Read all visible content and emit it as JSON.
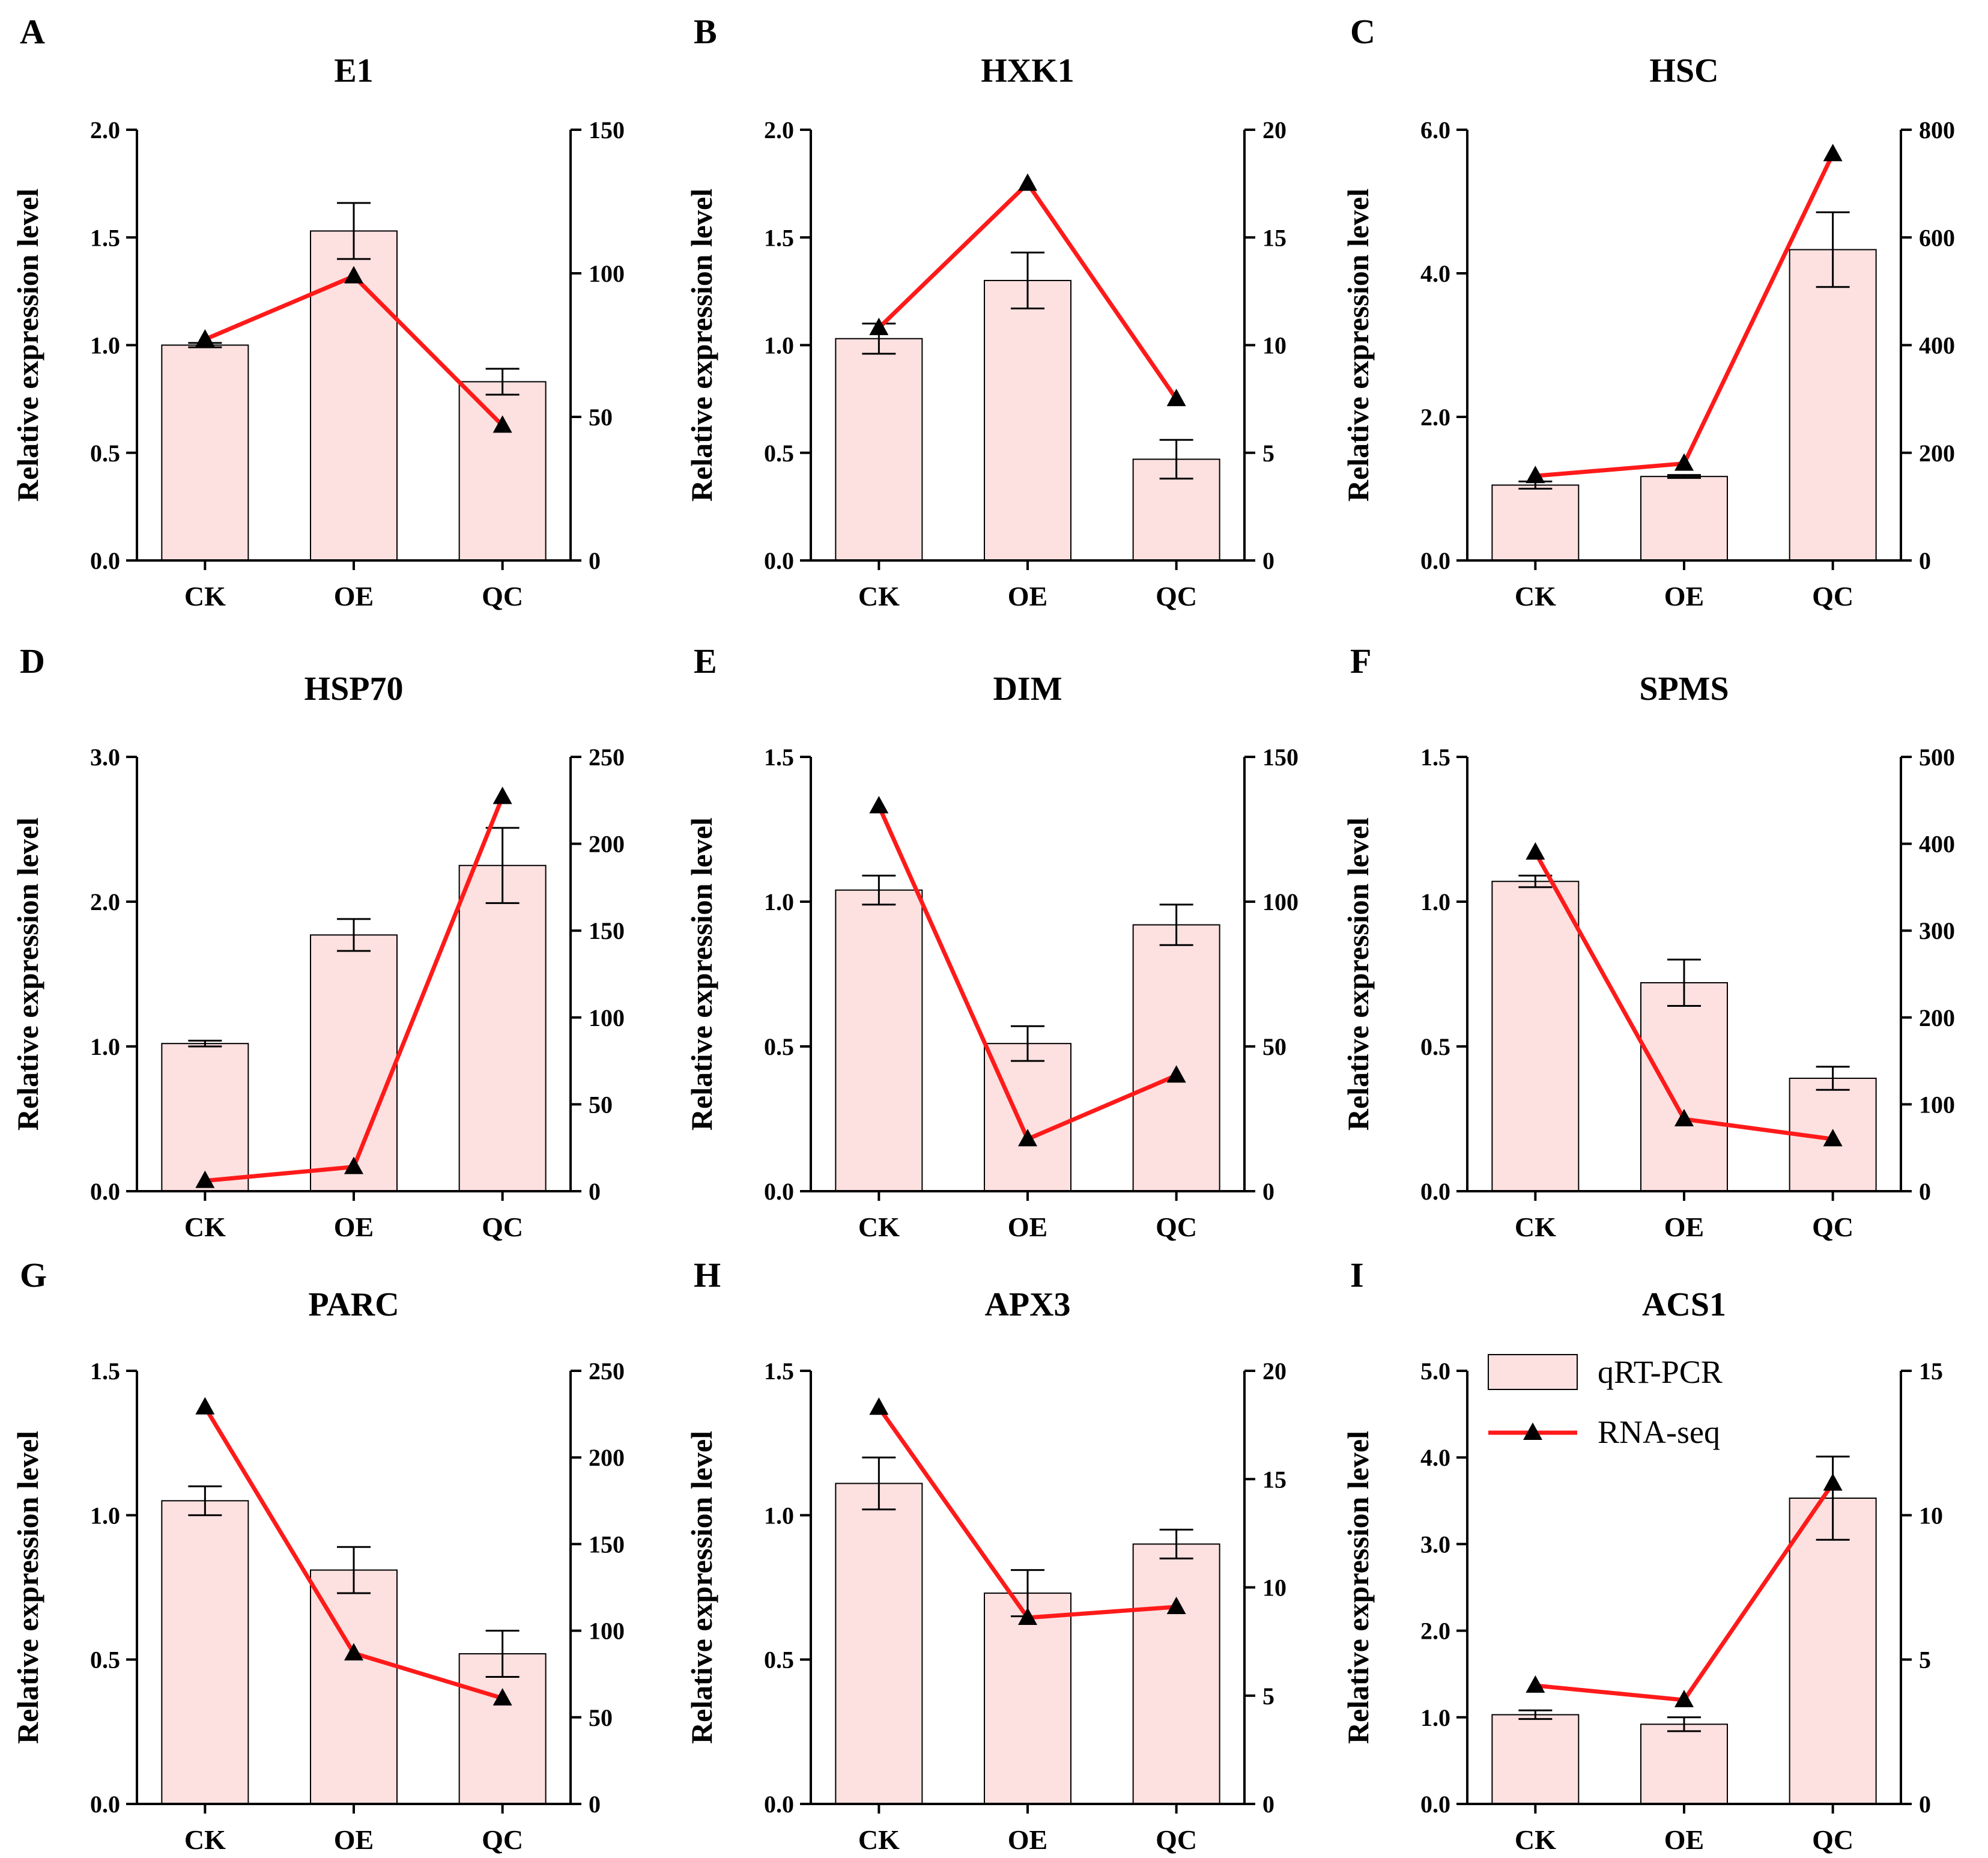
{
  "style": {
    "bar_fill": "#fde0e0",
    "bar_stroke": "#000000",
    "line_color": "#ff1a1a",
    "marker_color": "#000000"
  },
  "legend": {
    "bar_label": "qRT-PCR",
    "line_label": "RNA-seq"
  },
  "chart_data": [
    {
      "panel": "A",
      "title": "E1",
      "type": "bar+line",
      "ylabel": "Relative expression level",
      "categories": [
        "CK",
        "OE",
        "QC"
      ],
      "left_axis": {
        "ylim": [
          0,
          2.0
        ],
        "ticks": [
          0,
          0.5,
          1.0,
          1.5,
          2.0
        ],
        "tick_labels": [
          "0.0",
          "0.5",
          "1.0",
          "1.5",
          "2.0"
        ]
      },
      "right_axis": {
        "ylim": [
          0,
          150
        ],
        "ticks": [
          0,
          50,
          100,
          150
        ],
        "tick_labels": [
          "0",
          "50",
          "100",
          "150"
        ]
      },
      "series": [
        {
          "name": "qRT-PCR",
          "kind": "bar",
          "axis": "left",
          "values": [
            1.0,
            1.53,
            0.83
          ],
          "errors": [
            0.01,
            0.13,
            0.06
          ]
        },
        {
          "name": "RNA-seq",
          "kind": "line",
          "axis": "right",
          "values": [
            77,
            99,
            47
          ]
        }
      ]
    },
    {
      "panel": "B",
      "title": "HXK1",
      "type": "bar+line",
      "ylabel": "Relative expression level",
      "categories": [
        "CK",
        "OE",
        "QC"
      ],
      "left_axis": {
        "ylim": [
          0,
          2.0
        ],
        "ticks": [
          0,
          0.5,
          1.0,
          1.5,
          2.0
        ],
        "tick_labels": [
          "0.0",
          "0.5",
          "1.0",
          "1.5",
          "2.0"
        ]
      },
      "right_axis": {
        "ylim": [
          0,
          20
        ],
        "ticks": [
          0,
          5,
          10,
          15,
          20
        ],
        "tick_labels": [
          "0",
          "5",
          "10",
          "15",
          "20"
        ]
      },
      "series": [
        {
          "name": "qRT-PCR",
          "kind": "bar",
          "axis": "left",
          "values": [
            1.03,
            1.3,
            0.47
          ],
          "errors": [
            0.07,
            0.13,
            0.09
          ]
        },
        {
          "name": "RNA-seq",
          "kind": "line",
          "axis": "right",
          "values": [
            10.8,
            17.5,
            7.5
          ]
        }
      ]
    },
    {
      "panel": "C",
      "title": "HSC",
      "type": "bar+line",
      "ylabel": "Relative expression level",
      "categories": [
        "CK",
        "OE",
        "QC"
      ],
      "left_axis": {
        "ylim": [
          0,
          6.0
        ],
        "ticks": [
          0,
          2.0,
          4.0,
          6.0
        ],
        "tick_labels": [
          "0.0",
          "2.0",
          "4.0",
          "6.0"
        ]
      },
      "right_axis": {
        "ylim": [
          0,
          800
        ],
        "ticks": [
          0,
          200,
          400,
          600,
          800
        ],
        "tick_labels": [
          "0",
          "200",
          "400",
          "600",
          "800"
        ]
      },
      "series": [
        {
          "name": "qRT-PCR",
          "kind": "bar",
          "axis": "left",
          "values": [
            1.05,
            1.17,
            4.33
          ],
          "errors": [
            0.05,
            0.02,
            0.52
          ]
        },
        {
          "name": "RNA-seq",
          "kind": "line",
          "axis": "right",
          "values": [
            157,
            180,
            755
          ]
        }
      ]
    },
    {
      "panel": "D",
      "title": "HSP70",
      "type": "bar+line",
      "ylabel": "Relative expression level",
      "categories": [
        "CK",
        "OE",
        "QC"
      ],
      "left_axis": {
        "ylim": [
          0,
          3.0
        ],
        "ticks": [
          0,
          1.0,
          2.0,
          3.0
        ],
        "tick_labels": [
          "0.0",
          "1.0",
          "2.0",
          "3.0"
        ]
      },
      "right_axis": {
        "ylim": [
          0,
          250
        ],
        "ticks": [
          0,
          50,
          100,
          150,
          200,
          250
        ],
        "tick_labels": [
          "0",
          "50",
          "100",
          "150",
          "200",
          "250"
        ]
      },
      "series": [
        {
          "name": "qRT-PCR",
          "kind": "bar",
          "axis": "left",
          "values": [
            1.02,
            1.77,
            2.25
          ],
          "errors": [
            0.02,
            0.11,
            0.26
          ]
        },
        {
          "name": "RNA-seq",
          "kind": "line",
          "axis": "right",
          "values": [
            6,
            14,
            227
          ]
        }
      ]
    },
    {
      "panel": "E",
      "title": "DIM",
      "type": "bar+line",
      "ylabel": "Relative expression level",
      "categories": [
        "CK",
        "OE",
        "QC"
      ],
      "left_axis": {
        "ylim": [
          0,
          1.5
        ],
        "ticks": [
          0,
          0.5,
          1.0,
          1.5
        ],
        "tick_labels": [
          "0.0",
          "0.5",
          "1.0",
          "1.5"
        ]
      },
      "right_axis": {
        "ylim": [
          0,
          150
        ],
        "ticks": [
          0,
          50,
          100,
          150
        ],
        "tick_labels": [
          "0",
          "50",
          "100",
          "150"
        ]
      },
      "series": [
        {
          "name": "qRT-PCR",
          "kind": "bar",
          "axis": "left",
          "values": [
            1.04,
            0.51,
            0.92
          ],
          "errors": [
            0.05,
            0.06,
            0.07
          ]
        },
        {
          "name": "RNA-seq",
          "kind": "line",
          "axis": "right",
          "values": [
            133,
            18,
            40
          ]
        }
      ]
    },
    {
      "panel": "F",
      "title": "SPMS",
      "type": "bar+line",
      "ylabel": "Relative expression level",
      "categories": [
        "CK",
        "OE",
        "QC"
      ],
      "left_axis": {
        "ylim": [
          0,
          1.5
        ],
        "ticks": [
          0,
          0.5,
          1.0,
          1.5
        ],
        "tick_labels": [
          "0.0",
          "0.5",
          "1.0",
          "1.5"
        ]
      },
      "right_axis": {
        "ylim": [
          0,
          500
        ],
        "ticks": [
          0,
          100,
          200,
          300,
          400,
          500
        ],
        "tick_labels": [
          "0",
          "100",
          "200",
          "300",
          "400",
          "500"
        ]
      },
      "series": [
        {
          "name": "qRT-PCR",
          "kind": "bar",
          "axis": "left",
          "values": [
            1.07,
            0.72,
            0.39
          ],
          "errors": [
            0.02,
            0.08,
            0.04
          ]
        },
        {
          "name": "RNA-seq",
          "kind": "line",
          "axis": "right",
          "values": [
            390,
            83,
            60
          ]
        }
      ]
    },
    {
      "panel": "G",
      "title": "PARC",
      "type": "bar+line",
      "ylabel": "Relative expression level",
      "categories": [
        "CK",
        "OE",
        "QC"
      ],
      "left_axis": {
        "ylim": [
          0,
          1.5
        ],
        "ticks": [
          0,
          0.5,
          1.0,
          1.5
        ],
        "tick_labels": [
          "0.0",
          "0.5",
          "1.0",
          "1.5"
        ]
      },
      "right_axis": {
        "ylim": [
          0,
          250
        ],
        "ticks": [
          0,
          50,
          100,
          150,
          200,
          250
        ],
        "tick_labels": [
          "0",
          "50",
          "100",
          "150",
          "200",
          "250"
        ]
      },
      "series": [
        {
          "name": "qRT-PCR",
          "kind": "bar",
          "axis": "left",
          "values": [
            1.05,
            0.81,
            0.52
          ],
          "errors": [
            0.05,
            0.08,
            0.08
          ]
        },
        {
          "name": "RNA-seq",
          "kind": "line",
          "axis": "right",
          "values": [
            229,
            87,
            61
          ]
        }
      ]
    },
    {
      "panel": "H",
      "title": "APX3",
      "type": "bar+line",
      "ylabel": "Relative expression level",
      "categories": [
        "CK",
        "OE",
        "QC"
      ],
      "left_axis": {
        "ylim": [
          0,
          1.5
        ],
        "ticks": [
          0,
          0.5,
          1.0,
          1.5
        ],
        "tick_labels": [
          "0.0",
          "0.5",
          "1.0",
          "1.5"
        ]
      },
      "right_axis": {
        "ylim": [
          0,
          20
        ],
        "ticks": [
          0,
          5,
          10,
          15,
          20
        ],
        "tick_labels": [
          "0",
          "5",
          "10",
          "15",
          "20"
        ]
      },
      "series": [
        {
          "name": "qRT-PCR",
          "kind": "bar",
          "axis": "left",
          "values": [
            1.11,
            0.73,
            0.9
          ],
          "errors": [
            0.09,
            0.08,
            0.05
          ]
        },
        {
          "name": "RNA-seq",
          "kind": "line",
          "axis": "right",
          "values": [
            18.3,
            8.6,
            9.1
          ]
        }
      ]
    },
    {
      "panel": "I",
      "title": "ACS1",
      "type": "bar+line",
      "ylabel": "Relative expression level",
      "categories": [
        "CK",
        "OE",
        "QC"
      ],
      "left_axis": {
        "ylim": [
          0,
          5.0
        ],
        "ticks": [
          0,
          1.0,
          2.0,
          3.0,
          4.0,
          5.0
        ],
        "tick_labels": [
          "0.0",
          "1.0",
          "2.0",
          "3.0",
          "4.0",
          "5.0"
        ]
      },
      "right_axis": {
        "ylim": [
          0,
          15
        ],
        "ticks": [
          0,
          5,
          10,
          15
        ],
        "tick_labels": [
          "0",
          "5",
          "10",
          "15"
        ]
      },
      "series": [
        {
          "name": "qRT-PCR",
          "kind": "bar",
          "axis": "left",
          "values": [
            1.03,
            0.92,
            3.53
          ],
          "errors": [
            0.05,
            0.08,
            0.48
          ]
        },
        {
          "name": "RNA-seq",
          "kind": "line",
          "axis": "right",
          "values": [
            4.1,
            3.6,
            11.1
          ]
        }
      ]
    }
  ]
}
